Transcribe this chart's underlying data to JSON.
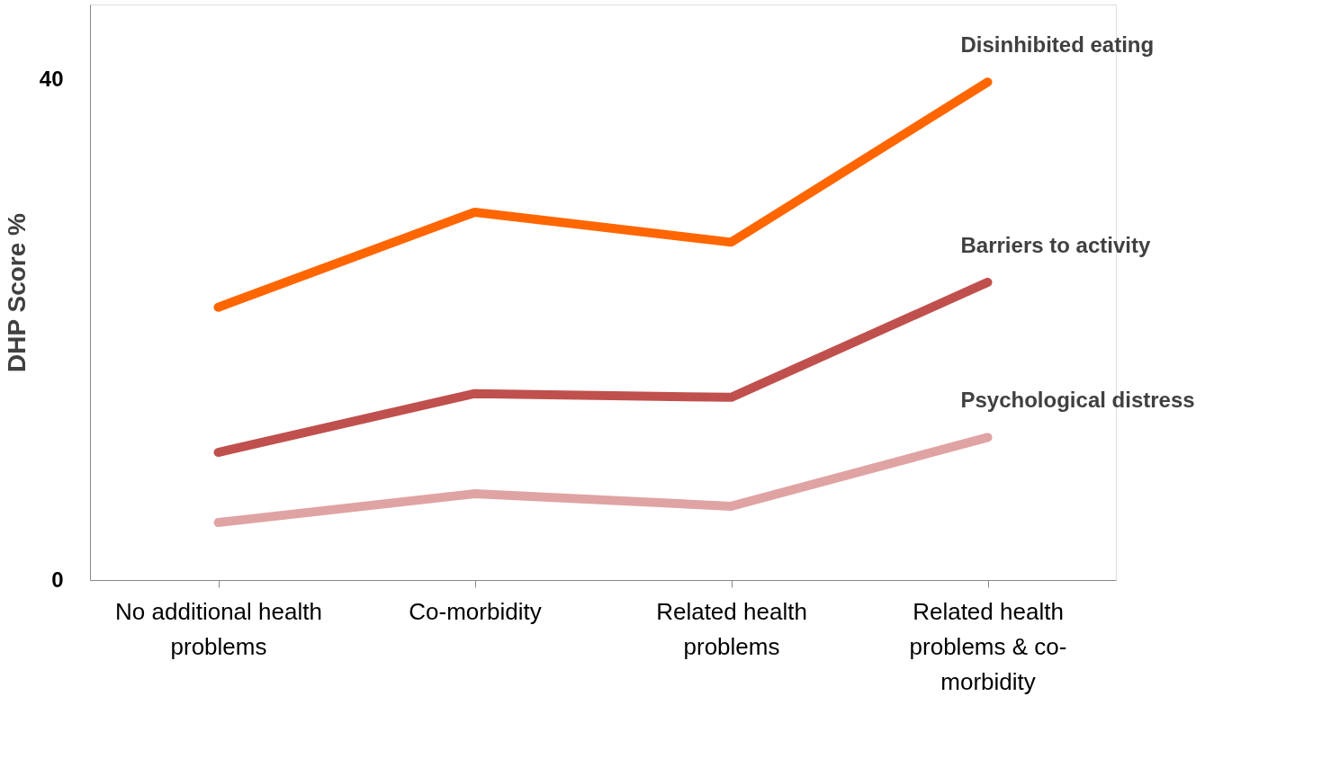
{
  "chart_data": {
    "type": "line",
    "ylabel": "DHP Score %",
    "categories": [
      "No additional  health problems",
      "Co-morbidity",
      "Related health problems",
      "Related health problems & co-morbidity"
    ],
    "series": [
      {
        "name": "Disinhibited eating",
        "color": "#ff6600",
        "values": [
          21.8,
          29.4,
          27.0,
          39.8
        ]
      },
      {
        "name": "Barriers to activity",
        "color": "#c0504d",
        "values": [
          10.2,
          14.9,
          14.6,
          23.8
        ]
      },
      {
        "name": "Psychological distress",
        "color": "#e0a3a3",
        "values": [
          4.6,
          6.9,
          5.9,
          11.4
        ]
      }
    ],
    "ylim": [
      0,
      46
    ],
    "yticks": [
      0,
      40
    ],
    "grid": false,
    "legend": false,
    "marker": "none",
    "line_style": "solid"
  }
}
